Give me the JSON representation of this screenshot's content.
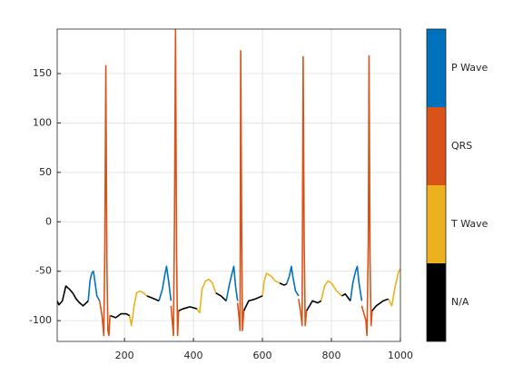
{
  "chart_data": {
    "type": "line",
    "xlim": [
      5,
      1000
    ],
    "xticks": [
      200,
      400,
      600,
      800,
      1000
    ],
    "ylim": [
      -121,
      195
    ],
    "yticks": [
      -100,
      -50,
      0,
      50,
      100,
      150
    ],
    "grid": true,
    "legend": "colorbar-right",
    "series": [
      {
        "name": "P Wave",
        "color": "#0072bd",
        "x": [
          95,
          100,
          105,
          110,
          115,
          120,
          128,
          null,
          300,
          310,
          318,
          322,
          328,
          335,
          null,
          495,
          505,
          512,
          517,
          522,
          528,
          null,
          670,
          678,
          684,
          688,
          696,
          705,
          null,
          855,
          862,
          870,
          875,
          880,
          888
        ],
        "values": [
          -80,
          -60,
          -52,
          -50,
          -62,
          -75,
          -80,
          null,
          -80,
          -68,
          -52,
          -45,
          -60,
          -80,
          null,
          -80,
          -62,
          -52,
          -45,
          -65,
          -80,
          null,
          -63,
          -55,
          -45,
          -55,
          -70,
          -75,
          null,
          -80,
          -62,
          -50,
          -45,
          -62,
          -80
        ]
      },
      {
        "name": "QRS",
        "color": "#d95319",
        "x": [
          128,
          135,
          140,
          143,
          146,
          149,
          152,
          155,
          158,
          160,
          null,
          335,
          342,
          345,
          348,
          351,
          354,
          357,
          null,
          528,
          533,
          535,
          537,
          540,
          542,
          546,
          null,
          705,
          712,
          715,
          718,
          721,
          724,
          728,
          null,
          888,
          900,
          903,
          907,
          909,
          912,
          915,
          918
        ],
        "values": [
          -80,
          -95,
          -115,
          -30,
          158,
          -40,
          -110,
          -115,
          -95,
          -95,
          null,
          -85,
          -115,
          0,
          195,
          -30,
          -115,
          -90,
          null,
          -82,
          -100,
          -110,
          173,
          -20,
          -110,
          -90,
          null,
          -78,
          -95,
          -105,
          167,
          -20,
          -105,
          -90,
          null,
          -85,
          -100,
          -115,
          -20,
          168,
          -40,
          -105,
          -90
        ]
      },
      {
        "name": "T Wave",
        "color": "#edb120",
        "x": [
          215,
          220,
          228,
          235,
          245,
          255,
          265,
          null,
          410,
          418,
          425,
          435,
          445,
          455,
          465,
          null,
          600,
          605,
          612,
          625,
          638,
          650,
          null,
          770,
          780,
          790,
          800,
          815,
          830,
          null,
          965,
          975,
          985,
          995,
          1000
        ],
        "values": [
          -95,
          -105,
          -85,
          -72,
          -70,
          -72,
          -75,
          null,
          -88,
          -92,
          -68,
          -60,
          -58,
          -62,
          -72,
          null,
          -75,
          -60,
          -52,
          -55,
          -60,
          -62,
          null,
          -80,
          -65,
          -60,
          -62,
          -70,
          -75,
          null,
          -78,
          -85,
          -65,
          -50,
          -48
        ]
      },
      {
        "name": "N/A",
        "color": "#000000",
        "x": [
          5,
          10,
          20,
          30,
          40,
          50,
          60,
          70,
          80,
          95,
          null,
          160,
          175,
          190,
          205,
          215,
          null,
          265,
          280,
          300,
          null,
          357,
          370,
          390,
          410,
          null,
          465,
          480,
          495,
          null,
          546,
          560,
          580,
          600,
          null,
          650,
          662,
          670,
          null,
          728,
          745,
          760,
          770,
          null,
          830,
          840,
          855,
          null,
          918,
          930,
          950,
          965
        ],
        "values": [
          -80,
          -84,
          -80,
          -65,
          -68,
          -72,
          -78,
          -82,
          -85,
          -80,
          null,
          -95,
          -97,
          -93,
          -93,
          -95,
          null,
          -75,
          -77,
          -80,
          null,
          -90,
          -88,
          -86,
          -88,
          null,
          -72,
          -75,
          -80,
          null,
          -90,
          -80,
          -78,
          -75,
          null,
          -62,
          -64,
          -63,
          null,
          -90,
          -80,
          -82,
          -80,
          null,
          -75,
          -73,
          -80,
          null,
          -90,
          -85,
          -80,
          -78
        ]
      }
    ]
  }
}
